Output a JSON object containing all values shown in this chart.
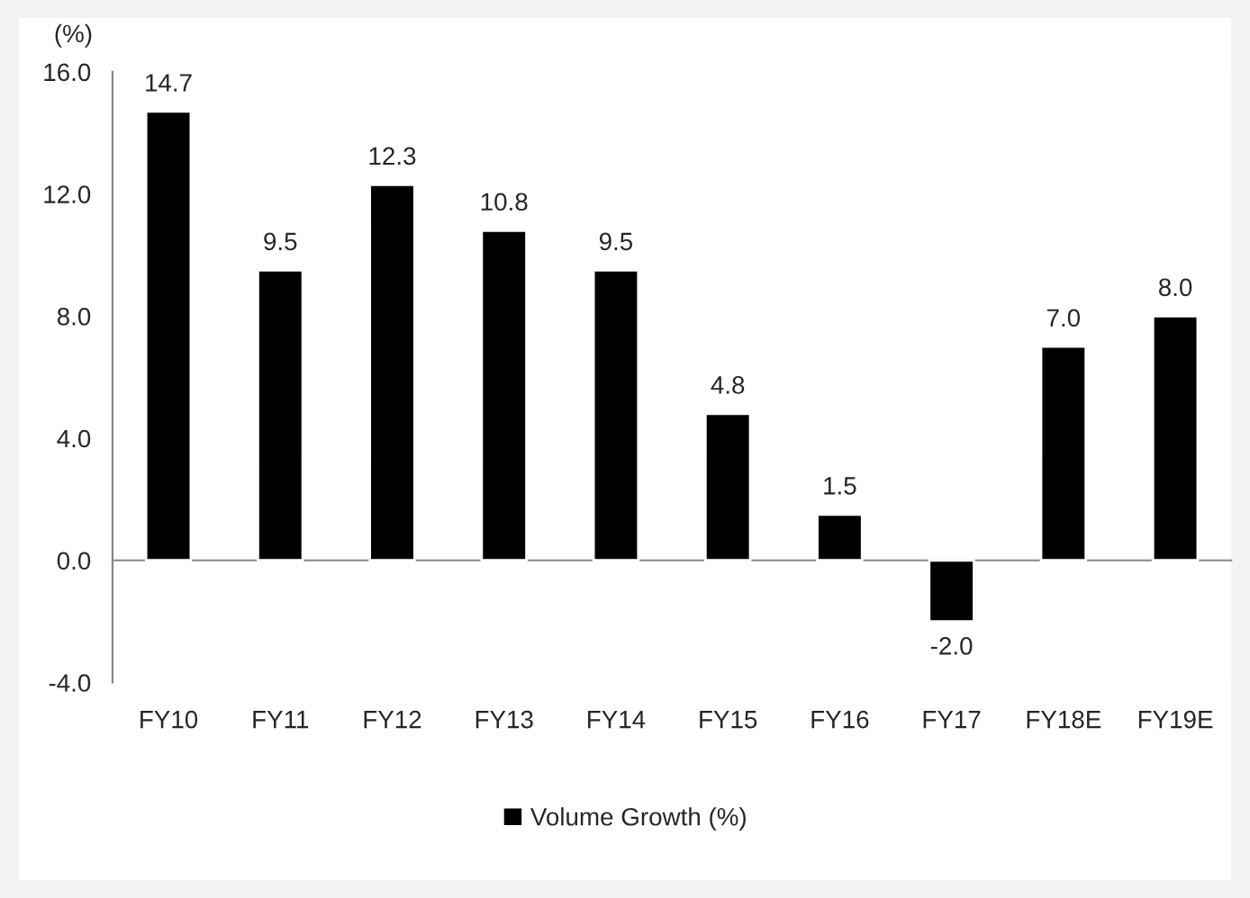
{
  "chart_data": {
    "type": "bar",
    "ylabel": "(%)",
    "categories": [
      "FY10",
      "FY11",
      "FY12",
      "FY13",
      "FY14",
      "FY15",
      "FY16",
      "FY17",
      "FY18E",
      "FY19E"
    ],
    "series": [
      {
        "name": "Volume Growth (%)",
        "color": "#000000",
        "values": [
          14.7,
          9.5,
          12.3,
          10.8,
          9.5,
          4.8,
          1.5,
          -2.0,
          7.0,
          8.0
        ]
      }
    ],
    "value_labels": [
      "14.7",
      "9.5",
      "12.3",
      "10.8",
      "9.5",
      "4.8",
      "1.5",
      "-2.0",
      "7.0",
      "8.0"
    ],
    "ylim": [
      -4,
      16
    ],
    "yticks": [
      {
        "value": -4,
        "label": "-4.0"
      },
      {
        "value": 0,
        "label": "0.0"
      },
      {
        "value": 4,
        "label": "4.0"
      },
      {
        "value": 8,
        "label": "8.0"
      },
      {
        "value": 12,
        "label": "12.0"
      },
      {
        "value": 16,
        "label": "16.0"
      }
    ],
    "legend": "bottom"
  }
}
